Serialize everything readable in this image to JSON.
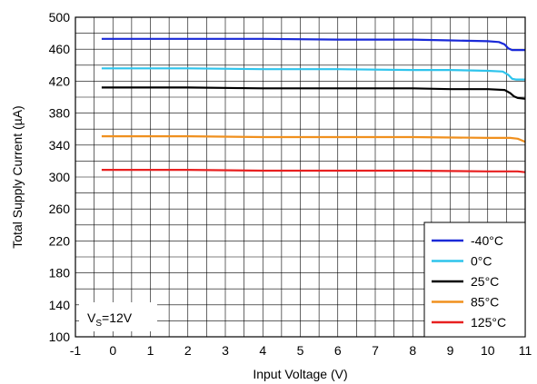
{
  "chart_data": {
    "type": "line",
    "title": "",
    "xlabel": "Input Voltage (V)",
    "ylabel": "Total Supply Current (µA)",
    "xlim": [
      -1,
      11
    ],
    "ylim": [
      100,
      500
    ],
    "xticks": [
      -1,
      0,
      1,
      2,
      3,
      4,
      5,
      6,
      7,
      8,
      9,
      10,
      11
    ],
    "yticks": [
      100,
      140,
      180,
      220,
      260,
      300,
      340,
      380,
      420,
      460,
      500
    ],
    "grid": true,
    "legend_position": "bottom-right",
    "annotation": {
      "prefix": "V",
      "subscript": "S",
      "suffix": "=12V"
    },
    "series": [
      {
        "name": "-40°C",
        "color": "#1a2ad8",
        "x": [
          -0.3,
          2,
          4,
          6,
          8,
          9,
          10,
          10.3,
          10.45,
          10.55,
          10.65,
          10.8,
          11
        ],
        "y": [
          473,
          473,
          473,
          472,
          472,
          471,
          470,
          469,
          466,
          461,
          459,
          459,
          459
        ]
      },
      {
        "name": "0°C",
        "color": "#2ec4ec",
        "x": [
          -0.3,
          2,
          4,
          6,
          8,
          9,
          10,
          10.4,
          10.55,
          10.65,
          10.75,
          11
        ],
        "y": [
          436,
          436,
          435,
          435,
          434,
          434,
          433,
          432,
          428,
          423,
          422,
          422
        ]
      },
      {
        "name": "25°C",
        "color": "#000000",
        "x": [
          -0.3,
          2,
          4,
          6,
          8,
          9,
          10,
          10.45,
          10.6,
          10.7,
          10.8,
          11
        ],
        "y": [
          412,
          412,
          411,
          411,
          411,
          410,
          410,
          409,
          405,
          401,
          399,
          398
        ]
      },
      {
        "name": "85°C",
        "color": "#f0901e",
        "x": [
          -0.3,
          2,
          4,
          6,
          8,
          10,
          10.6,
          10.8,
          10.9,
          11
        ],
        "y": [
          351,
          351,
          350,
          350,
          350,
          349,
          349,
          348,
          346,
          344
        ]
      },
      {
        "name": "125°C",
        "color": "#e82020",
        "x": [
          -0.3,
          2,
          4,
          6,
          8,
          10,
          10.8,
          11
        ],
        "y": [
          309,
          309,
          308,
          308,
          308,
          307,
          307,
          306
        ]
      }
    ]
  }
}
